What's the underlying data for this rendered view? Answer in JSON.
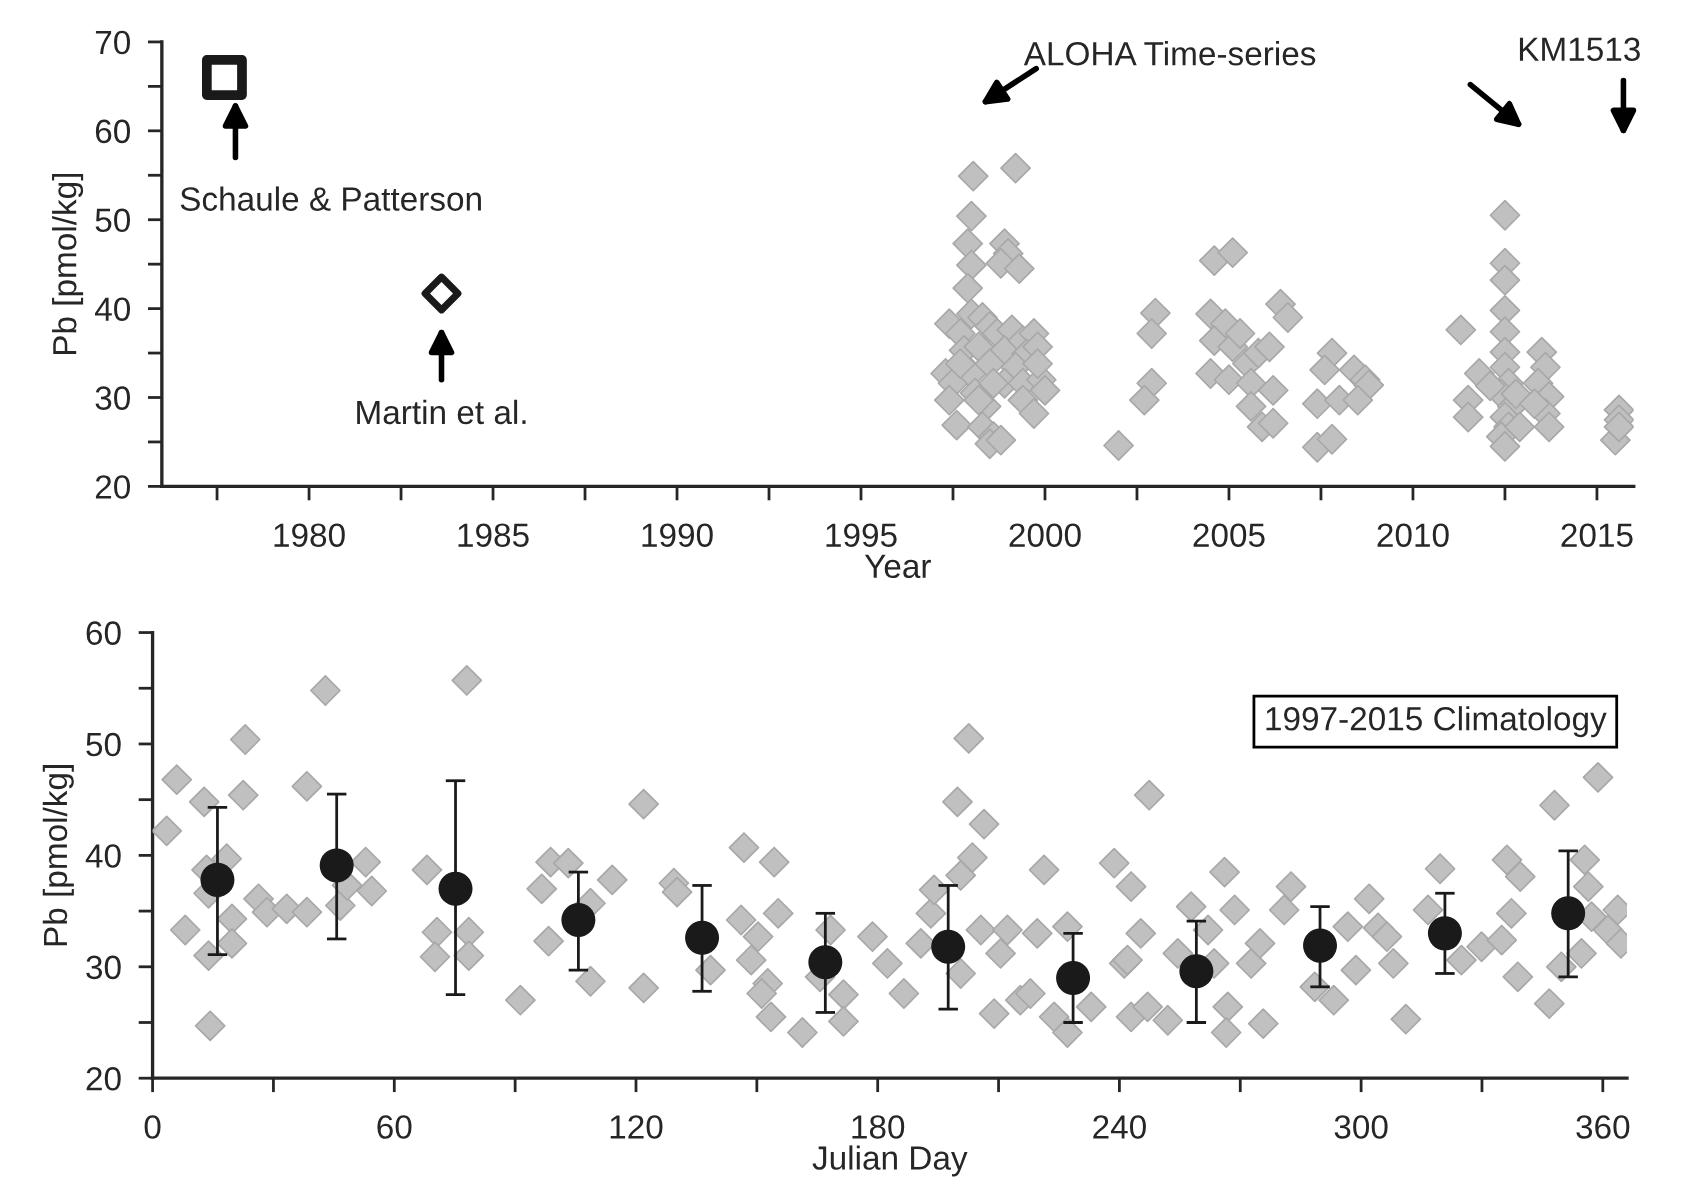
{
  "chart_data": [
    {
      "type": "scatter",
      "xlabel": "Year",
      "ylabel": "Pb [pmol/kg]",
      "xlim": [
        1976,
        2016
      ],
      "ylim": [
        20,
        70
      ],
      "xticks": [
        {
          "value": 1977.5,
          "label": null
        },
        1980,
        {
          "value": 1982.5,
          "label": null
        },
        1985,
        {
          "value": 1987.5,
          "label": null
        },
        1990,
        {
          "value": 1992.5,
          "label": null
        },
        1995,
        {
          "value": 1997.5,
          "label": null
        },
        2000,
        {
          "value": 2002.5,
          "label": null
        },
        2005,
        {
          "value": 2007.5,
          "label": null
        },
        2010,
        {
          "value": 2012.5,
          "label": null
        },
        2015
      ],
      "yticks": [
        20,
        {
          "value": 25,
          "label": null
        },
        30,
        {
          "value": 35,
          "label": null
        },
        40,
        {
          "value": 45,
          "label": null
        },
        50,
        {
          "value": 55,
          "label": null
        },
        60,
        {
          "value": 65,
          "label": null
        },
        70
      ],
      "grid": false,
      "series": [
        {
          "color": "#c0c0c0",
          "marker": "diamond",
          "x": [
            1998.05,
            1999.2,
            1998.0,
            1997.9,
            1998.0,
            1997.9,
            1998.9,
            1999.0,
            1998.8,
            1999.3,
            1997.4,
            1997.7,
            1998.0,
            1998.3,
            1997.8,
            1998.2,
            1998.5,
            1997.3,
            1997.5,
            1997.4,
            1997.6,
            1998.0,
            1998.1,
            1998.4,
            1998.3,
            1998.6,
            1998.5,
            1998.8,
            1998.7,
            1999.1,
            1998.9,
            1999.4,
            1999.7,
            1999.5,
            1999.2,
            1999.8,
            1998.9,
            1999.4,
            1999.9,
            2000.0,
            1999.4,
            1999.7,
            1999.8,
            1998.5,
            1997.7,
            1998.6,
            1998.2,
            2002.0,
            2003.0,
            2002.9,
            2002.9,
            2002.7,
            2004.6,
            2005.1,
            2004.5,
            2004.9,
            2004.6,
            2005.1,
            2004.5,
            2005.0,
            2005.5,
            2005.8,
            2006.1,
            2005.6,
            2006.2,
            2005.6,
            2005.9,
            2006.2,
            2006.4,
            2006.6,
            2005.3,
            2007.8,
            2007.6,
            2007.4,
            2008.0,
            2007.4,
            2007.8,
            2008.4,
            2008.7,
            2008.8,
            2008.5,
            2011.3,
            2011.8,
            2011.5,
            2011.5,
            2012.5,
            2012.5,
            2012.5,
            2012.5,
            2012.5,
            2012.5,
            2012.5,
            2012.6,
            2012.4,
            2012.7,
            2012.5,
            2012.6,
            2012.4,
            2012.5,
            2012.9,
            2012.8,
            2012.1,
            2013.5,
            2013.6,
            2013.4,
            2013.7,
            2013.6,
            2013.7,
            2013.3,
            2015.6,
            2015.6,
            2015.5,
            2015.6
          ],
          "values": [
            54.9,
            55.8,
            50.4,
            47.3,
            44.9,
            42.3,
            47.3,
            46.2,
            45.1,
            44.5,
            38.3,
            37.2,
            39.4,
            39.0,
            35.3,
            35.7,
            38.0,
            32.7,
            31.6,
            29.7,
            26.9,
            32.7,
            30.5,
            29.0,
            26.7,
            25.6,
            24.8,
            25.2,
            37.2,
            37.6,
            35.3,
            36.4,
            37.2,
            34.9,
            33.4,
            35.7,
            31.6,
            31.6,
            32.0,
            30.8,
            29.7,
            28.2,
            33.8,
            33.8,
            33.8,
            31.6,
            29.7,
            24.6,
            39.5,
            37.2,
            31.6,
            29.7,
            45.4,
            46.3,
            39.4,
            38.3,
            36.4,
            35.7,
            32.7,
            32.0,
            33.8,
            35.0,
            35.7,
            31.6,
            30.8,
            29.0,
            26.7,
            27.1,
            40.5,
            39.0,
            37.2,
            35.0,
            33.1,
            29.3,
            29.7,
            24.4,
            25.3,
            33.1,
            32.0,
            31.4,
            29.7,
            37.6,
            32.7,
            29.7,
            27.8,
            50.5,
            45.1,
            43.2,
            39.8,
            37.4,
            35.1,
            33.4,
            31.6,
            30.4,
            29.0,
            27.8,
            26.7,
            25.6,
            24.5,
            26.7,
            30.4,
            31.3,
            35.1,
            33.4,
            31.6,
            30.1,
            28.2,
            26.7,
            29.3,
            28.6,
            27.5,
            25.2,
            26.7
          ]
        },
        {
          "color": "#1a1a1a",
          "marker": "square",
          "x": [
            1977.7
          ],
          "values": [
            66
          ]
        },
        {
          "color": "#1a1a1a",
          "marker": "diamond",
          "x": [
            1983.6
          ],
          "values": [
            41.7
          ]
        }
      ],
      "annotations": [
        "Schaule & Patterson",
        "Martin et al.",
        "ALOHA Time-series",
        "KM1513"
      ]
    },
    {
      "type": "scatter",
      "xlabel": "Julian Day",
      "ylabel": "Pb [pmol/kg]",
      "xlim": [
        0,
        366
      ],
      "ylim": [
        20,
        60
      ],
      "xticks": [
        0,
        {
          "value": 30,
          "label": null
        },
        60,
        {
          "value": 90,
          "label": null
        },
        120,
        {
          "value": 150,
          "label": null
        },
        180,
        {
          "value": 210,
          "label": null
        },
        240,
        {
          "value": 270,
          "label": null
        },
        300,
        {
          "value": 330,
          "label": null
        },
        360
      ],
      "yticks": [
        20,
        {
          "value": 25,
          "label": null
        },
        30,
        {
          "value": 35,
          "label": null
        },
        40,
        {
          "value": 45,
          "label": null
        },
        50,
        {
          "value": 55,
          "label": null
        },
        60
      ],
      "grid": false,
      "series": [
        {
          "color": "#c0c0c0",
          "marker": "diamond",
          "x": [
            3.5,
            6.0,
            8.1,
            12.8,
            13.4,
            13.9,
            13.9,
            14.3,
            18.4,
            19.7,
            19.7,
            23.0,
            22.5,
            26.3,
            28.4,
            33.3,
            38.3,
            42.9,
            38.3,
            46.6,
            48.3,
            52.9,
            54.4,
            68.1,
            70.6,
            70.1,
            78.0,
            78.5,
            78.5,
            91.3,
            96.6,
            98.3,
            98.8,
            103.2,
            108.7,
            108.7,
            114.1,
            121.9,
            121.9,
            129.4,
            130.2,
            138.5,
            146.8,
            154.3,
            146.1,
            150.3,
            148.6,
            152.7,
            153.5,
            155.3,
            151.2,
            161.3,
            165.7,
            168.3,
            171.5,
            171.5,
            178.7,
            182.4,
            186.5,
            190.7,
            193.2,
            194.0,
            199.8,
            202.6,
            206.4,
            203.5,
            200.6,
            205.6,
            200.6,
            208.9,
            212.2,
            210.5,
            215.4,
            217.9,
            219.6,
            221.3,
            223.8,
            227.1,
            227.1,
            233.0,
            238.7,
            242.9,
            241.2,
            242.9,
            247.4,
            245.3,
            242.0,
            247.0,
            252.0,
            257.8,
            254.5,
            262.0,
            266.1,
            268.6,
            263.5,
            266.9,
            266.5,
            272.7,
            274.9,
            275.7,
            280.9,
            282.6,
            288.5,
            293.2,
            296.7,
            298.7,
            302.0,
            304.2,
            306.4,
            308.0,
            311.1,
            316.6,
            319.6,
            324.9,
            329.9,
            334.9,
            336.2,
            339.5,
            337.3,
            338.9,
            346.7,
            348.0,
            349.7,
            355.5,
            356.4,
            357.2,
            354.7,
            358.8,
            361.3,
            363.7,
            364.5
          ],
          "values": [
            42.2,
            46.8,
            33.3,
            44.8,
            38.7,
            36.6,
            31.0,
            24.7,
            39.7,
            34.3,
            32.1,
            50.4,
            45.4,
            36.1,
            34.9,
            35.2,
            34.9,
            54.8,
            46.2,
            35.5,
            37.3,
            39.4,
            36.8,
            38.7,
            33.1,
            30.9,
            55.7,
            33.1,
            31.0,
            27.0,
            37.0,
            32.3,
            39.4,
            39.3,
            35.7,
            28.7,
            37.8,
            44.6,
            28.1,
            37.5,
            36.7,
            29.7,
            40.7,
            39.4,
            34.2,
            32.7,
            30.6,
            28.5,
            25.5,
            34.8,
            27.6,
            24.1,
            29.1,
            33.3,
            27.5,
            25.1,
            32.7,
            30.3,
            27.6,
            32.1,
            34.8,
            36.9,
            44.8,
            50.5,
            42.8,
            39.8,
            38.2,
            33.3,
            29.4,
            25.8,
            33.3,
            31.2,
            27.0,
            27.6,
            33.0,
            38.7,
            25.5,
            24.1,
            33.6,
            26.4,
            39.3,
            37.2,
            30.3,
            25.5,
            45.4,
            33.0,
            30.6,
            26.4,
            25.2,
            35.4,
            31.2,
            33.3,
            38.5,
            35.1,
            30.3,
            26.4,
            24.1,
            30.3,
            32.1,
            24.9,
            35.1,
            37.2,
            28.2,
            27.0,
            33.6,
            29.7,
            36.1,
            33.5,
            32.7,
            30.3,
            25.3,
            35.1,
            38.8,
            30.6,
            31.8,
            32.4,
            39.6,
            38.1,
            34.8,
            29.1,
            26.7,
            44.5,
            30.0,
            39.6,
            37.2,
            34.5,
            31.2,
            47.0,
            33.3,
            35.1,
            32.1
          ]
        },
        {
          "color": "#1a1a1a",
          "marker": "circle",
          "x": [
            16.1,
            45.7,
            75.2,
            105.7,
            136.4,
            167.0,
            197.5,
            228.5,
            259.1,
            289.8,
            320.8,
            351.4
          ],
          "values": [
            37.8,
            39.1,
            37.0,
            34.2,
            32.6,
            30.4,
            31.8,
            29.0,
            29.6,
            31.9,
            33.0,
            34.8
          ],
          "errors": [
            [
              31.1,
              44.3
            ],
            [
              32.5,
              45.5
            ],
            [
              27.5,
              46.7
            ],
            [
              29.7,
              38.5
            ],
            [
              27.8,
              37.3
            ],
            [
              25.9,
              34.8
            ],
            [
              26.2,
              37.3
            ],
            [
              25.0,
              33.0
            ],
            [
              25.0,
              34.1
            ],
            [
              28.2,
              35.4
            ],
            [
              29.4,
              36.6
            ],
            [
              29.1,
              40.4
            ]
          ]
        }
      ],
      "annotations": [
        "1997-2015 Climatology"
      ]
    }
  ]
}
